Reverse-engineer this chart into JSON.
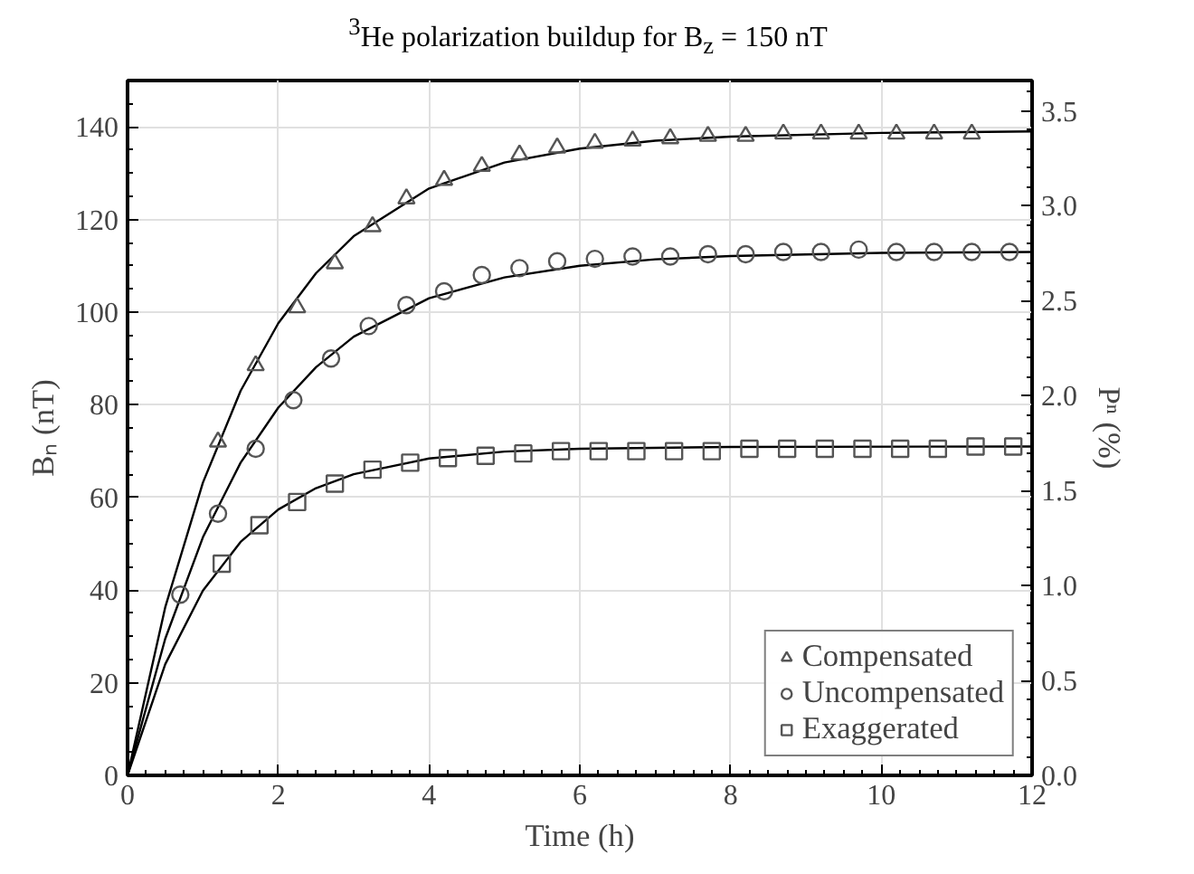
{
  "chart_data": {
    "type": "scatter",
    "title": "$^{3}$He polarization buildup for B$_{z}$ = 150 nT",
    "xlabel": "Time (h)",
    "ylabel": "Bₙ (nT)",
    "y2label": "Pⁿ (%)",
    "xlim": [
      0,
      12
    ],
    "ylim": [
      0,
      150
    ],
    "y2lim": [
      0,
      3.66
    ],
    "xticks": [
      0,
      2,
      4,
      6,
      8,
      10,
      12
    ],
    "yticks": [
      0,
      20,
      40,
      60,
      80,
      100,
      120,
      140
    ],
    "y2ticks": [
      {
        "value": 0,
        "label": "0.0"
      },
      {
        "value": 0.5,
        "label": "0.5"
      },
      {
        "value": 1,
        "label": "1.0"
      },
      {
        "value": 1.5,
        "label": "1.5"
      },
      {
        "value": 2,
        "label": "2.0"
      },
      {
        "value": 2.5,
        "label": "2.5"
      },
      {
        "value": 3,
        "label": "3.0"
      },
      {
        "value": 3.5,
        "label": "3.5"
      }
    ],
    "grid": true,
    "legend": "bottom right",
    "series": [
      {
        "type": "line",
        "color": "#000000",
        "x": [
          0,
          0.5,
          1,
          1.5,
          2,
          2.5,
          3,
          4,
          5,
          6,
          7,
          8,
          10,
          12
        ],
        "values": [
          0,
          36.3,
          63.2,
          83,
          97.6,
          108.4,
          116.4,
          126.7,
          132.3,
          135.3,
          137,
          137.9,
          138.7,
          139
        ]
      },
      {
        "type": "line",
        "color": "#000000",
        "x": [
          0,
          0.5,
          1,
          1.5,
          2,
          2.5,
          3,
          4,
          5,
          6,
          7,
          8,
          10,
          12
        ],
        "values": [
          0,
          29.5,
          51.4,
          67.5,
          79.4,
          88.1,
          94.7,
          103,
          107.5,
          110,
          111.4,
          112.1,
          112.8,
          113
        ]
      },
      {
        "type": "line",
        "color": "#000000",
        "x": [
          0,
          0.5,
          1,
          1.5,
          2,
          2.5,
          3,
          4,
          5,
          6,
          8,
          12
        ],
        "values": [
          0,
          24,
          39.9,
          50.4,
          57.4,
          62,
          65,
          68.4,
          69.9,
          70.5,
          70.9,
          71
        ]
      },
      {
        "name": "Compensated",
        "marker": "triangle",
        "color": "#555555",
        "x": [
          1.2,
          1.7,
          2.25,
          2.75,
          3.25,
          3.7,
          4.2,
          4.7,
          5.2,
          5.7,
          6.2,
          6.7,
          7.2,
          7.7,
          8.2,
          8.7,
          9.2,
          9.7,
          10.2,
          10.7,
          11.2
        ],
        "values": [
          72,
          88.5,
          101,
          110.5,
          118.5,
          124.5,
          128.5,
          131.5,
          134,
          135.5,
          136.5,
          137,
          137.5,
          138,
          138,
          138.5,
          138.5,
          138.5,
          138.5,
          138.5,
          138.5
        ]
      },
      {
        "name": "Uncompensated",
        "marker": "circle",
        "color": "#555555",
        "x": [
          0.7,
          1.2,
          1.7,
          2.2,
          2.7,
          3.2,
          3.7,
          4.2,
          4.7,
          5.2,
          5.7,
          6.2,
          6.7,
          7.2,
          7.7,
          8.2,
          8.7,
          9.2,
          9.7,
          10.2,
          10.7,
          11.2,
          11.7
        ],
        "values": [
          39,
          56.5,
          70.5,
          81,
          90,
          97,
          101.5,
          104.5,
          108,
          109.5,
          111,
          111.5,
          112,
          112,
          112.5,
          112.5,
          113,
          113,
          113.5,
          113,
          113,
          113,
          113
        ]
      },
      {
        "name": "Exaggerated",
        "marker": "square",
        "color": "#555555",
        "x": [
          1.25,
          1.75,
          2.25,
          2.75,
          3.25,
          3.75,
          4.25,
          4.75,
          5.25,
          5.75,
          6.25,
          6.75,
          7.25,
          7.75,
          8.25,
          8.75,
          9.25,
          9.75,
          10.25,
          10.75,
          11.25,
          11.75
        ],
        "values": [
          45.7,
          54,
          59,
          63,
          66,
          67.5,
          68.5,
          69,
          69.5,
          70,
          70,
          70,
          70,
          70,
          70.5,
          70.5,
          70.5,
          70.5,
          70.5,
          70.5,
          71,
          71
        ]
      }
    ]
  }
}
